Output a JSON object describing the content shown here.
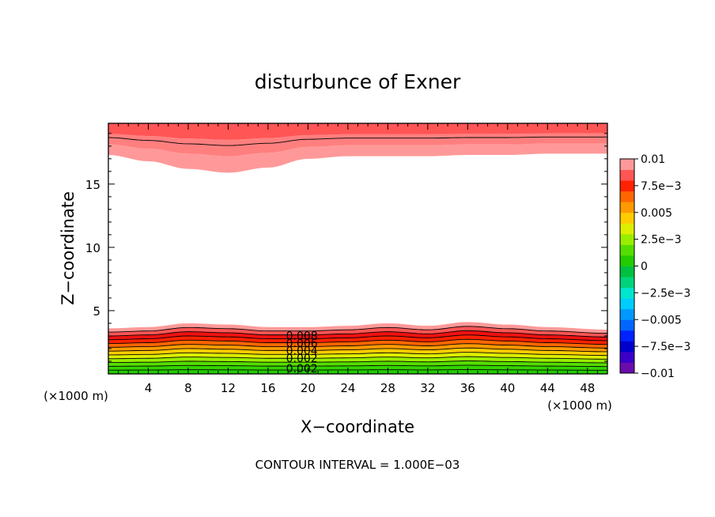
{
  "chart_data": {
    "type": "contour",
    "title": "disturbunce of Exner",
    "xlabel": "X−coordinate",
    "ylabel": "Z−coordinate",
    "x_unit_left": "(×1000 m)",
    "x_unit_right": "(×1000 m)",
    "xlim": [
      0,
      50
    ],
    "ylim": [
      0,
      19.8
    ],
    "x_ticks": [
      4,
      8,
      12,
      16,
      20,
      24,
      28,
      32,
      36,
      40,
      44,
      48
    ],
    "x_tick_labels": [
      "4",
      "8",
      "12",
      "16",
      "20",
      "24",
      "28",
      "32",
      "36",
      "40",
      "44",
      "48"
    ],
    "y_ticks": [
      5,
      10,
      15
    ],
    "y_tick_labels": [
      "5",
      "10",
      "15"
    ],
    "contour_labels": [
      "0.008",
      "0.006",
      "0.004",
      "0.002",
      "0.002"
    ],
    "footer": "CONTOUR INTERVAL = 1.000E−03",
    "colorbar": {
      "tick_labels": [
        "0.01",
        "7.5e−3",
        "0.005",
        "2.5e−3",
        "0",
        "−2.5e−3",
        "−0.005",
        "−7.5e−3",
        "−0.01"
      ],
      "levels": [
        -0.01,
        -0.009,
        -0.008,
        -0.007,
        -0.006,
        -0.005,
        -0.004,
        -0.003,
        -0.002,
        -0.001,
        0,
        0.001,
        0.002,
        0.003,
        0.004,
        0.005,
        0.006,
        0.007,
        0.008,
        0.009,
        0.01
      ],
      "colors": [
        "#6a0dad",
        "#3b00c8",
        "#0000cc",
        "#0022ff",
        "#0066ff",
        "#0099ff",
        "#00ccff",
        "#00e6cc",
        "#00d47a",
        "#00c040",
        "#22cc00",
        "#55dd00",
        "#99ee00",
        "#ddee00",
        "#ffcc00",
        "#ff9900",
        "#ff6600",
        "#ff2200",
        "#ff5555",
        "#ff9999"
      ]
    },
    "bottom_layer": {
      "x": [
        0,
        4,
        8,
        12,
        16,
        20,
        24,
        28,
        32,
        36,
        40,
        44,
        50
      ],
      "top_of_filled_region_z": [
        3.6,
        3.7,
        4.0,
        3.9,
        3.7,
        3.7,
        3.8,
        4.0,
        3.8,
        4.1,
        3.9,
        3.7,
        3.5
      ]
    },
    "top_layer": {
      "x": [
        0,
        4,
        8,
        12,
        16,
        20,
        24,
        28,
        32,
        36,
        40,
        44,
        50
      ],
      "bottom_of_filled_region_z": [
        17.3,
        16.8,
        16.2,
        15.9,
        16.3,
        17.0,
        17.2,
        17.2,
        17.2,
        17.3,
        17.3,
        17.4,
        17.4
      ]
    }
  }
}
